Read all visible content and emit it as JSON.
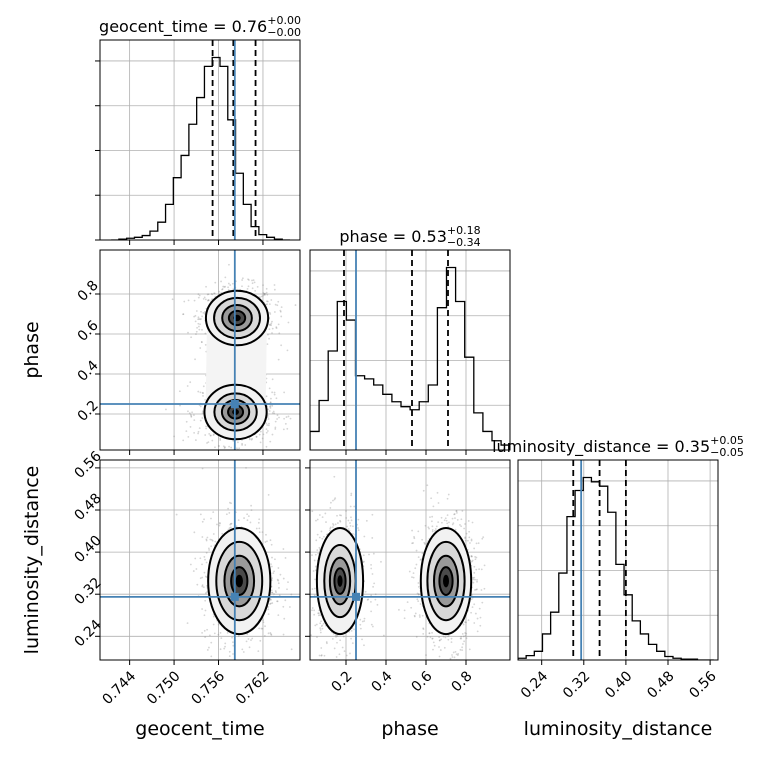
{
  "chart_data": {
    "type": "corner",
    "grid": true,
    "colors": {
      "frame": "#000000",
      "grid": "#b0b0b0",
      "truth": "#4682b4",
      "hist": "#000000",
      "scatter": "#888888",
      "contour_fill_dark": "#000000",
      "contour_fill_light": "#f2f2f2"
    },
    "parameters": [
      {
        "name": "geocent_time",
        "range": [
          0.74,
          0.767
        ],
        "ticks": [
          "0.744",
          "0.750",
          "0.756",
          "0.762"
        ],
        "tick_values": [
          0.744,
          0.75,
          0.756,
          0.762
        ],
        "truth": 0.7582,
        "median": 0.758,
        "q_low": 0.7552,
        "q_high": 0.761
      },
      {
        "name": "phase",
        "range": [
          0.02,
          1.02
        ],
        "ticks": [
          "0.2",
          "0.4",
          "0.6",
          "0.8"
        ],
        "tick_values": [
          0.2,
          0.4,
          0.6,
          0.8
        ],
        "truth": 0.25,
        "median": 0.53,
        "q_low": 0.19,
        "q_high": 0.71
      },
      {
        "name": "luminosity_distance",
        "range": [
          0.195,
          0.575
        ],
        "ticks": [
          "0.24",
          "0.32",
          "0.40",
          "0.48",
          "0.56"
        ],
        "tick_values": [
          0.24,
          0.32,
          0.4,
          0.48,
          0.56
        ],
        "truth": 0.315,
        "median": 0.35,
        "q_low": 0.3,
        "q_high": 0.4
      }
    ],
    "titles": [
      {
        "param": "geocent_time",
        "base": "geocent_time = 0.76",
        "plus": "+0.00",
        "minus": "−0.00"
      },
      {
        "param": "phase",
        "base": "phase = 0.53",
        "plus": "+0.18",
        "minus": "−0.34"
      },
      {
        "param": "luminosity_distance",
        "base": "luminosity_distance = 0.35",
        "plus": "+0.05",
        "minus": "−0.05"
      }
    ],
    "histograms": [
      {
        "param": "geocent_time",
        "bin_start": 0.7415,
        "bin_width": 0.00105,
        "counts": [
          0,
          1,
          2,
          3,
          5,
          10,
          20,
          40,
          70,
          95,
          130,
          160,
          195,
          205,
          195,
          135,
          75,
          40,
          15,
          6,
          3,
          1,
          0
        ]
      },
      {
        "param": "phase",
        "bin_start": 0.02,
        "bin_width": 0.0455,
        "counts": [
          30,
          80,
          160,
          240,
          210,
          120,
          115,
          105,
          90,
          78,
          70,
          65,
          78,
          105,
          230,
          295,
          240,
          150,
          60,
          30,
          15,
          8
        ]
      },
      {
        "param": "luminosity_distance",
        "bin_start": 0.195,
        "bin_width": 0.0155,
        "counts": [
          2,
          5,
          10,
          30,
          55,
          100,
          165,
          195,
          210,
          205,
          200,
          170,
          110,
          75,
          45,
          30,
          18,
          10,
          4,
          2,
          1,
          1,
          0,
          0
        ]
      }
    ],
    "joint_2d": [
      {
        "x": "geocent_time",
        "y": "phase",
        "modes": [
          {
            "x": 0.7585,
            "y": 0.68,
            "sx": 0.002,
            "sy": 0.065,
            "w": 1.0
          },
          {
            "x": 0.7583,
            "y": 0.21,
            "sx": 0.002,
            "sy": 0.065,
            "w": 0.85
          }
        ]
      },
      {
        "x": "geocent_time",
        "y": "luminosity_distance",
        "modes": [
          {
            "x": 0.7588,
            "y": 0.345,
            "sx": 0.002,
            "sy": 0.048,
            "w": 1.0
          }
        ]
      },
      {
        "x": "phase",
        "y": "luminosity_distance",
        "modes": [
          {
            "x": 0.17,
            "y": 0.345,
            "sx": 0.055,
            "sy": 0.048,
            "w": 0.85
          },
          {
            "x": 0.7,
            "y": 0.345,
            "sx": 0.06,
            "sy": 0.048,
            "w": 1.0
          }
        ]
      }
    ]
  }
}
